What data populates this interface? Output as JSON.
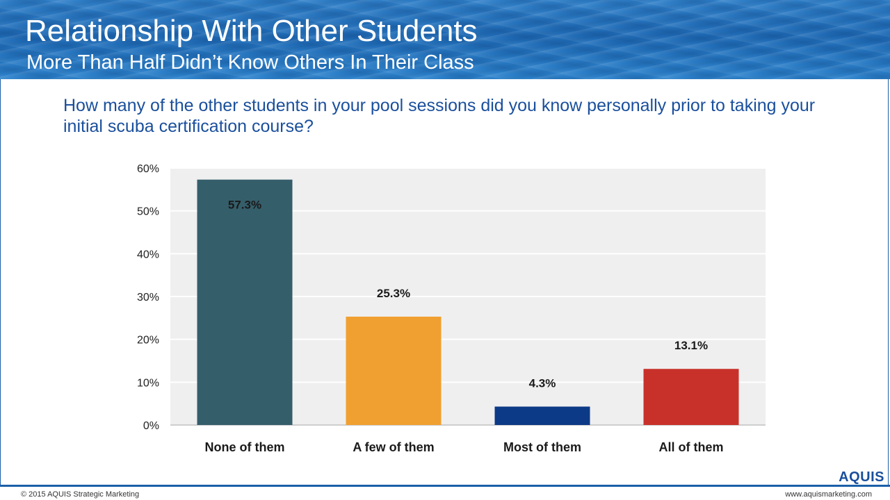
{
  "header": {
    "title": "Relationship With Other Students",
    "subtitle": "More Than Half Didn’t Know Others In Their Class"
  },
  "question": "How many of the other students in your pool sessions did you know personally prior to taking your initial scuba certification course?",
  "chart_data": {
    "type": "bar",
    "title": "",
    "xlabel": "",
    "ylabel": "",
    "categories": [
      "None of them",
      "A few of them",
      "Most of them",
      "All of them"
    ],
    "values": [
      57.3,
      25.3,
      4.3,
      13.1
    ],
    "data_labels": [
      "57.3%",
      "25.3%",
      "4.3%",
      "13.1%"
    ],
    "colors": [
      "#355e6b",
      "#f0a030",
      "#0d3a86",
      "#c8312a"
    ],
    "ylim": [
      0,
      60
    ],
    "yticks": [
      0,
      10,
      20,
      30,
      40,
      50,
      60
    ],
    "ytick_labels": [
      "0%",
      "10%",
      "20%",
      "30%",
      "40%",
      "50%",
      "60%"
    ],
    "grid": true,
    "legend": "none",
    "plot_background": "#efefef"
  },
  "footer": {
    "copyright": "© 2015 AQUIS Strategic Marketing",
    "website": "www.aquismarketing.com",
    "logo_text": "AQUIS"
  }
}
